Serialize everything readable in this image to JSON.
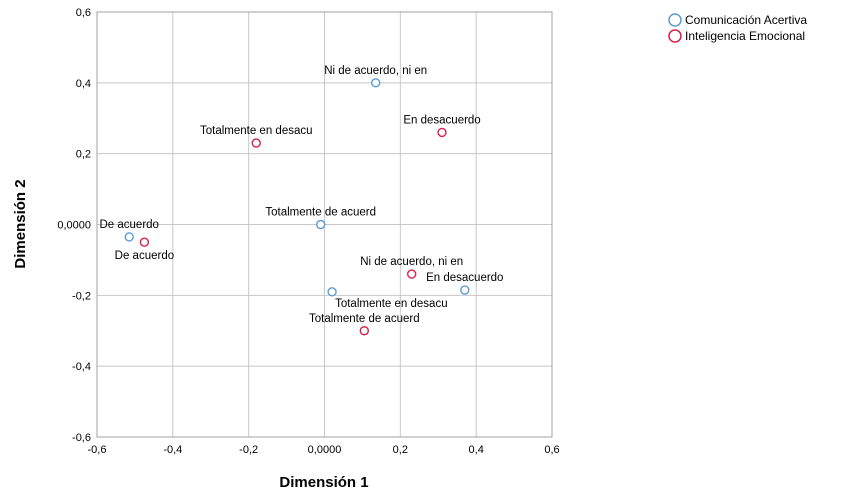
{
  "chart_data": {
    "type": "scatter",
    "title": "",
    "xlabel": "Dimensión 1",
    "ylabel": "Dimensión 2",
    "xlim": [
      -0.6,
      0.6
    ],
    "ylim": [
      -0.6,
      0.6
    ],
    "xticks": [
      {
        "v": -0.6,
        "t": "-0,6"
      },
      {
        "v": -0.4,
        "t": "-0,4"
      },
      {
        "v": -0.2,
        "t": "-0,2"
      },
      {
        "v": 0.0,
        "t": "0,0000"
      },
      {
        "v": 0.2,
        "t": "0,2"
      },
      {
        "v": 0.4,
        "t": "0,4"
      },
      {
        "v": 0.6,
        "t": "0,6"
      }
    ],
    "yticks": [
      {
        "v": 0.6,
        "t": "0,6"
      },
      {
        "v": 0.4,
        "t": "0,4"
      },
      {
        "v": 0.2,
        "t": "0,2"
      },
      {
        "v": 0.0,
        "t": "0,0000"
      },
      {
        "v": -0.2,
        "t": "-0,2"
      },
      {
        "v": -0.4,
        "t": "-0,4"
      },
      {
        "v": -0.6,
        "t": "-0,6"
      }
    ],
    "grid": true,
    "legend_position": "top-right",
    "series": [
      {
        "name": "Comunicación Acertiva",
        "color": "#5b9bd5",
        "points": [
          {
            "x": 0.135,
            "y": 0.4,
            "label": "Ni de acuerdo, ni en",
            "pos": "above"
          },
          {
            "x": -0.01,
            "y": 0.0,
            "label": "Totalmente de acuerd",
            "pos": "above"
          },
          {
            "x": -0.515,
            "y": -0.035,
            "label": "De acuerdo",
            "pos": "above"
          },
          {
            "x": 0.02,
            "y": -0.19,
            "label": "Totalmente en desacu",
            "pos": "below-right"
          },
          {
            "x": 0.37,
            "y": -0.185,
            "label": "En desacuerdo",
            "pos": "above"
          }
        ]
      },
      {
        "name": "Inteligencia Emocional",
        "color": "#d6204e",
        "points": [
          {
            "x": 0.31,
            "y": 0.26,
            "label": "En desacuerdo",
            "pos": "above"
          },
          {
            "x": -0.18,
            "y": 0.23,
            "label": "Totalmente en desacu",
            "pos": "above"
          },
          {
            "x": -0.475,
            "y": -0.05,
            "label": "De acuerdo",
            "pos": "below"
          },
          {
            "x": 0.23,
            "y": -0.14,
            "label": "Ni de acuerdo, ni en",
            "pos": "above"
          },
          {
            "x": 0.105,
            "y": -0.3,
            "label": "Totalmente de acuerd",
            "pos": "above"
          }
        ]
      }
    ]
  }
}
